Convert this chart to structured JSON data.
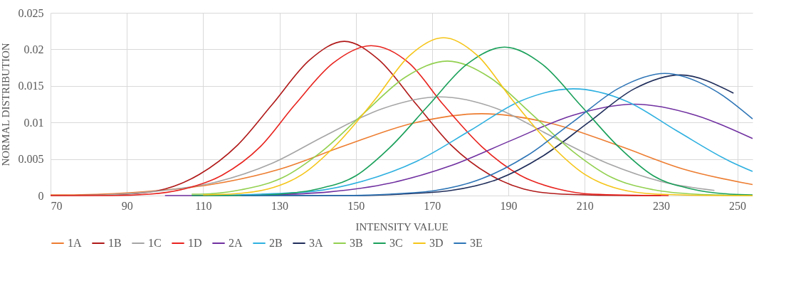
{
  "chart_data": {
    "type": "line",
    "xlabel": "INTENSITY VALUE",
    "ylabel": "NORMAL DISTRIBUTION",
    "xlim": [
      70,
      254
    ],
    "xticks": [
      70,
      90,
      110,
      130,
      150,
      170,
      190,
      210,
      230,
      250
    ],
    "ylim": [
      0,
      0.025
    ],
    "yticks": [
      0,
      0.005,
      0.01,
      0.015,
      0.02,
      0.025
    ],
    "grid": true,
    "legend": "bottom",
    "line_style": "solid",
    "marker": "none",
    "series": [
      {
        "name": "1A",
        "color": "#ed7d31",
        "x": [
          70,
          76,
          94,
          112,
          130,
          147,
          165,
          183,
          201,
          219,
          236,
          254
        ],
        "values": [
          0.0001,
          0.0001,
          0.0005,
          0.0015,
          0.0036,
          0.0068,
          0.0099,
          0.0112,
          0.0099,
          0.0068,
          0.0036,
          0.0015
        ]
      },
      {
        "name": "1B",
        "color": "#b01818",
        "x": [
          70,
          90,
          100,
          109,
          119,
          128,
          138,
          147,
          156,
          166,
          175,
          185,
          194,
          204,
          223,
          230
        ],
        "values": [
          0,
          0.0002,
          0.0009,
          0.0029,
          0.0069,
          0.0124,
          0.0186,
          0.0211,
          0.0186,
          0.0124,
          0.0069,
          0.0029,
          0.0009,
          0.0002,
          0,
          0
        ]
      },
      {
        "name": "1C",
        "color": "#a5a5a5",
        "x": [
          70,
          84,
          98,
          113,
          128,
          142,
          157,
          172,
          187,
          201,
          216,
          231,
          244
        ],
        "values": [
          0,
          0.0001,
          0.0006,
          0.0018,
          0.0044,
          0.0082,
          0.0119,
          0.0135,
          0.0119,
          0.0082,
          0.0044,
          0.0018,
          0.0007
        ]
      },
      {
        "name": "1D",
        "color": "#e8231e",
        "x": [
          70,
          86,
          96,
          105,
          115,
          125,
          134,
          144,
          154,
          164,
          173,
          183,
          193,
          203,
          212,
          232
        ],
        "values": [
          0,
          0,
          0.0002,
          0.0009,
          0.0028,
          0.0067,
          0.0124,
          0.0181,
          0.0205,
          0.0181,
          0.0124,
          0.0067,
          0.0028,
          0.0009,
          0.0002,
          0
        ]
      },
      {
        "name": "2A",
        "color": "#7030a0",
        "x": [
          100,
          111,
          127,
          143,
          159,
          175,
          191,
          207,
          223,
          239,
          254
        ],
        "values": [
          0,
          0,
          0.0001,
          0.0005,
          0.0017,
          0.0041,
          0.0076,
          0.011,
          0.0125,
          0.011,
          0.0078
        ]
      },
      {
        "name": "2B",
        "color": "#2eb0e0",
        "x": [
          111,
          125,
          139,
          152,
          166,
          180,
          193,
          207,
          221,
          234,
          248,
          254
        ],
        "values": [
          0,
          0.0002,
          0.0006,
          0.002,
          0.0047,
          0.0089,
          0.0129,
          0.0146,
          0.0129,
          0.0089,
          0.0047,
          0.0033
        ]
      },
      {
        "name": "3A",
        "color": "#1f2d5a",
        "x": [
          120,
          138,
          150,
          162,
          175,
          187,
          199,
          211,
          223,
          235,
          249
        ],
        "values": [
          0,
          0,
          0,
          0.0002,
          0.0007,
          0.0022,
          0.0054,
          0.01,
          0.0146,
          0.0165,
          0.014
        ]
      },
      {
        "name": "3B",
        "color": "#92d050",
        "x": [
          107,
          109,
          120,
          131,
          141,
          152,
          163,
          174,
          185,
          196,
          207,
          217,
          228,
          239,
          254
        ],
        "values": [
          0.0002,
          0.0002,
          0.0008,
          0.0025,
          0.006,
          0.0112,
          0.0162,
          0.0184,
          0.0162,
          0.0112,
          0.006,
          0.0025,
          0.0008,
          0.0002,
          0
        ]
      },
      {
        "name": "3C",
        "color": "#1aa05a",
        "x": [
          107,
          120,
          130,
          140,
          150,
          159,
          169,
          179,
          189,
          199,
          209,
          219,
          228,
          238,
          248,
          254
        ],
        "values": [
          0,
          0,
          0.0002,
          0.0009,
          0.0027,
          0.0066,
          0.0123,
          0.0179,
          0.0203,
          0.0179,
          0.0123,
          0.0066,
          0.0027,
          0.0009,
          0.0002,
          0.0001
        ]
      },
      {
        "name": "3D",
        "color": "#f5c518",
        "x": [
          110,
          117,
          127,
          136,
          145,
          155,
          164,
          173,
          182,
          191,
          201,
          210,
          219,
          229,
          247,
          254
        ],
        "values": [
          0.0001,
          0.0002,
          0.0009,
          0.0029,
          0.007,
          0.0131,
          0.0191,
          0.0216,
          0.0191,
          0.0131,
          0.007,
          0.0029,
          0.0009,
          0.0002,
          0,
          0
        ]
      },
      {
        "name": "3E",
        "color": "#2e75b6",
        "x": [
          120,
          147,
          159,
          171,
          183,
          195,
          207,
          219,
          231,
          243,
          254
        ],
        "values": [
          0,
          0,
          0.0002,
          0.0007,
          0.0023,
          0.0055,
          0.0101,
          0.0147,
          0.0167,
          0.0147,
          0.0105
        ]
      }
    ]
  }
}
